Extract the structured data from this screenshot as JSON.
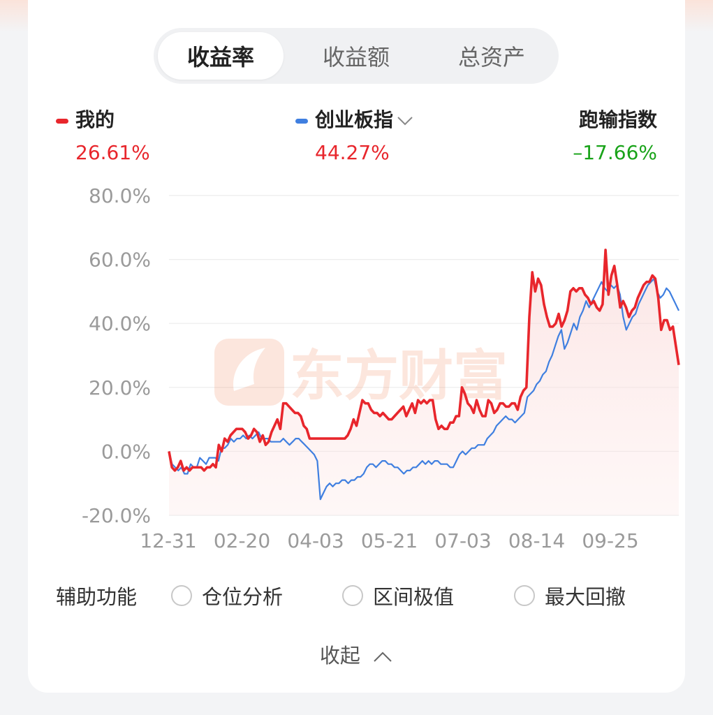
{
  "tabs": [
    {
      "label": "收益率",
      "active": true
    },
    {
      "label": "收益额",
      "active": false
    },
    {
      "label": "总资产",
      "active": false
    }
  ],
  "legend": {
    "mine": {
      "label": "我的",
      "value": "26.61%",
      "color": "#e8262c"
    },
    "index": {
      "label": "创业板指",
      "value": "44.27%",
      "color": "#3f7fe0"
    },
    "diff": {
      "label": "跑输指数",
      "value": "–17.66%",
      "color": "#19a319"
    }
  },
  "watermark": "东方财富",
  "aux": {
    "title": "辅助功能",
    "options": [
      "仓位分析",
      "区间极值",
      "最大回撤"
    ]
  },
  "collapse_label": "收起",
  "chart_data": {
    "type": "line",
    "x_tick_labels": [
      "12-31",
      "02-20",
      "04-03",
      "05-21",
      "07-03",
      "08-14",
      "09-25"
    ],
    "y_tick_labels": [
      "80.0%",
      "60.0%",
      "40.0%",
      "20.0%",
      "0.0%",
      "-20.0%"
    ],
    "ylim": [
      -20,
      80
    ],
    "grid": true,
    "series": [
      {
        "name": "我的",
        "color": "#e8262c",
        "values": [
          0,
          -5,
          -6,
          -5,
          -3,
          -6,
          -5,
          -6,
          -5,
          -5,
          -5,
          -5,
          -6,
          -5,
          -5,
          -4,
          -5,
          2,
          0,
          4,
          3,
          5,
          6,
          7,
          7,
          7,
          6,
          4,
          5,
          7,
          6,
          3,
          5,
          2,
          3,
          6,
          8,
          10,
          7,
          15,
          15,
          14,
          13,
          12,
          12,
          11,
          8,
          7,
          4,
          4,
          4,
          4,
          4,
          4,
          4,
          4,
          4,
          4,
          4,
          4,
          4,
          5,
          7,
          10,
          8,
          12,
          16,
          15,
          15,
          13,
          12,
          12,
          11,
          12,
          11,
          10,
          10,
          11,
          12,
          13,
          14,
          11,
          13,
          15,
          12,
          16,
          15,
          16,
          15,
          16,
          16,
          10,
          7,
          8,
          7,
          7,
          9,
          9,
          11,
          11,
          20,
          18,
          15,
          14,
          12,
          16,
          13,
          11,
          11,
          16,
          15,
          12,
          13,
          15,
          15,
          14,
          14,
          15,
          15,
          13,
          17,
          19,
          20,
          42,
          56,
          50,
          54,
          52,
          46,
          42,
          39,
          39,
          40,
          43,
          39,
          41,
          44,
          50,
          51,
          50,
          51,
          51,
          49,
          48,
          46,
          47,
          45,
          44,
          46,
          63,
          49,
          55,
          58,
          52,
          45,
          47,
          45,
          42,
          44,
          45,
          48,
          50,
          52,
          53,
          53,
          55,
          54,
          48,
          38,
          41,
          41,
          38,
          39,
          33,
          27
        ]
      },
      {
        "name": "创业板指",
        "color": "#3f7fe0",
        "values": [
          0,
          -4,
          -5,
          -6,
          -5,
          -7,
          -7,
          -4,
          -5,
          -5,
          -2,
          -3,
          -4,
          -2,
          -2,
          -2,
          -3,
          1,
          1,
          2,
          4,
          3,
          4,
          4,
          5,
          4,
          5,
          4,
          5,
          6,
          4,
          4,
          4,
          3,
          3,
          3,
          3,
          4,
          3,
          2,
          3,
          4,
          4,
          3,
          2,
          1,
          0,
          -1,
          -3,
          -15,
          -13,
          -11,
          -10,
          -11,
          -10,
          -10,
          -9,
          -9,
          -10,
          -9,
          -9,
          -8,
          -8,
          -7,
          -5,
          -4,
          -4,
          -5,
          -4,
          -3,
          -3,
          -4,
          -4,
          -5,
          -5,
          -6,
          -7,
          -6,
          -6,
          -5,
          -5,
          -4,
          -3,
          -4,
          -3,
          -4,
          -3,
          -3,
          -4,
          -4,
          -4,
          -5,
          -5,
          -3,
          -1,
          0,
          -1,
          0,
          1,
          1,
          2,
          2,
          2,
          4,
          5,
          6,
          8,
          9,
          10,
          11,
          10,
          10,
          9,
          10,
          11,
          12,
          17,
          18,
          19,
          21,
          22,
          24,
          25,
          28,
          30,
          33,
          36,
          38,
          32,
          34,
          37,
          40,
          38,
          42,
          44,
          47,
          45,
          47,
          49,
          51,
          53,
          51,
          50,
          52,
          51,
          52,
          49,
          42,
          38,
          40,
          42,
          43,
          46,
          48,
          50,
          52,
          53,
          54,
          50,
          48,
          49,
          51,
          50,
          48,
          46,
          44
        ]
      }
    ]
  }
}
